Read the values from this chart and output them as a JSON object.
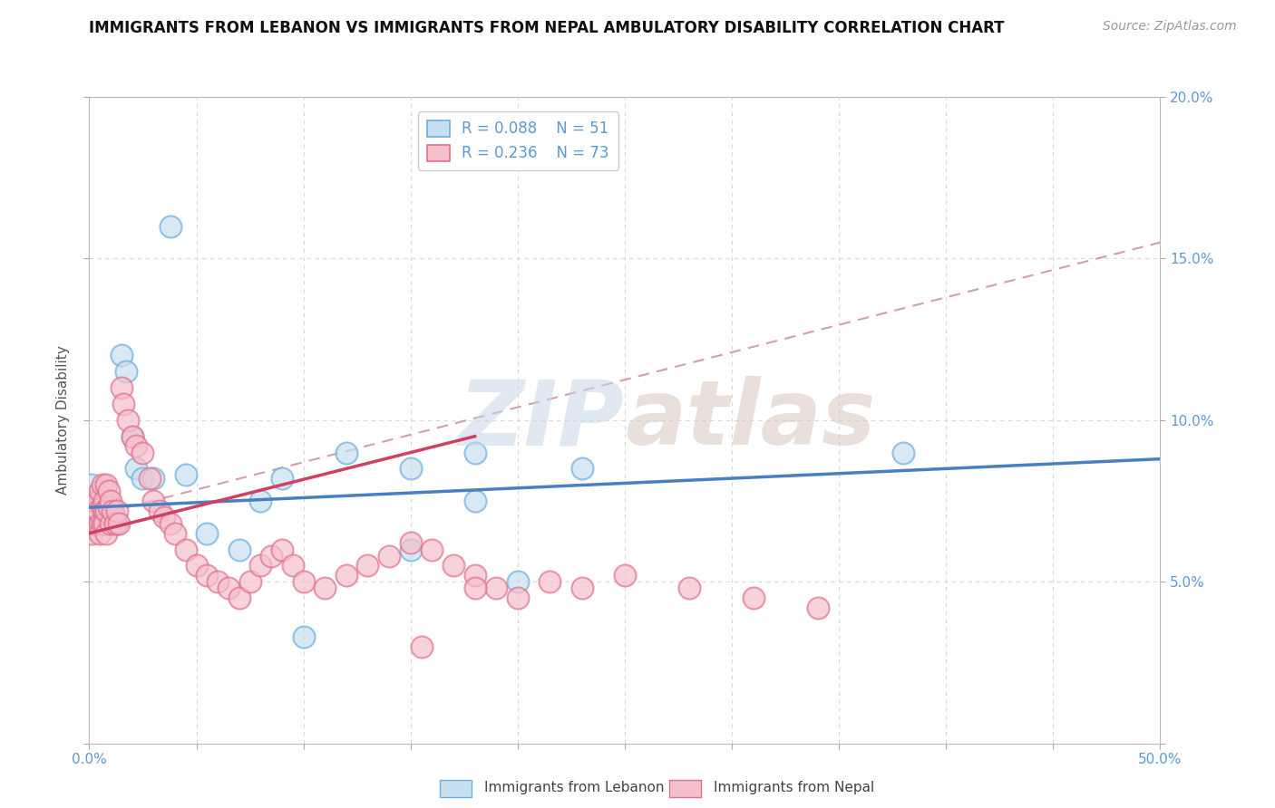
{
  "title": "IMMIGRANTS FROM LEBANON VS IMMIGRANTS FROM NEPAL AMBULATORY DISABILITY CORRELATION CHART",
  "source": "Source: ZipAtlas.com",
  "ylabel": "Ambulatory Disability",
  "xlim": [
    0.0,
    0.5
  ],
  "ylim": [
    0.0,
    0.2
  ],
  "xticks": [
    0.0,
    0.05,
    0.1,
    0.15,
    0.2,
    0.25,
    0.3,
    0.35,
    0.4,
    0.45,
    0.5
  ],
  "yticks": [
    0.0,
    0.05,
    0.1,
    0.15,
    0.2
  ],
  "legend_r1": "R = 0.088",
  "legend_n1": "N = 51",
  "legend_r2": "R = 0.236",
  "legend_n2": "N = 73",
  "color_lebanon_fill": "#c8dff2",
  "color_lebanon_edge": "#6aaee0",
  "color_nepal_fill": "#f5c0cc",
  "color_nepal_edge": "#e07090",
  "color_line_lebanon": "#4a7fc0",
  "color_line_nepal": "#d04060",
  "color_dashed": "#d0a0b0",
  "watermark_color": "#d8e4f0",
  "background_color": "#ffffff",
  "grid_color": "#d8d8d8",
  "lebanon_x": [
    0.001,
    0.001,
    0.002,
    0.002,
    0.002,
    0.003,
    0.003,
    0.003,
    0.004,
    0.004,
    0.004,
    0.005,
    0.005,
    0.005,
    0.005,
    0.006,
    0.006,
    0.006,
    0.007,
    0.007,
    0.007,
    0.008,
    0.008,
    0.009,
    0.009,
    0.01,
    0.01,
    0.011,
    0.012,
    0.013,
    0.015,
    0.017,
    0.02,
    0.022,
    0.025,
    0.03,
    0.038,
    0.045,
    0.055,
    0.07,
    0.08,
    0.09,
    0.1,
    0.12,
    0.15,
    0.18,
    0.2,
    0.23,
    0.15,
    0.18,
    0.38
  ],
  "lebanon_y": [
    0.075,
    0.08,
    0.072,
    0.068,
    0.074,
    0.07,
    0.073,
    0.069,
    0.075,
    0.071,
    0.068,
    0.074,
    0.07,
    0.072,
    0.068,
    0.073,
    0.069,
    0.075,
    0.071,
    0.073,
    0.068,
    0.072,
    0.069,
    0.075,
    0.068,
    0.072,
    0.068,
    0.073,
    0.07,
    0.068,
    0.12,
    0.115,
    0.095,
    0.085,
    0.082,
    0.082,
    0.16,
    0.083,
    0.065,
    0.06,
    0.075,
    0.082,
    0.033,
    0.09,
    0.085,
    0.075,
    0.05,
    0.085,
    0.06,
    0.09,
    0.09
  ],
  "nepal_x": [
    0.001,
    0.001,
    0.002,
    0.002,
    0.002,
    0.003,
    0.003,
    0.003,
    0.004,
    0.004,
    0.004,
    0.005,
    0.005,
    0.005,
    0.006,
    0.006,
    0.006,
    0.007,
    0.007,
    0.007,
    0.008,
    0.008,
    0.008,
    0.009,
    0.009,
    0.01,
    0.01,
    0.011,
    0.012,
    0.013,
    0.014,
    0.015,
    0.016,
    0.018,
    0.02,
    0.022,
    0.025,
    0.028,
    0.03,
    0.033,
    0.035,
    0.038,
    0.04,
    0.045,
    0.05,
    0.055,
    0.06,
    0.065,
    0.07,
    0.075,
    0.08,
    0.085,
    0.09,
    0.095,
    0.1,
    0.11,
    0.12,
    0.13,
    0.14,
    0.15,
    0.16,
    0.17,
    0.18,
    0.19,
    0.2,
    0.215,
    0.23,
    0.25,
    0.28,
    0.31,
    0.34,
    0.155,
    0.18
  ],
  "nepal_y": [
    0.065,
    0.072,
    0.068,
    0.075,
    0.07,
    0.073,
    0.068,
    0.072,
    0.07,
    0.075,
    0.072,
    0.068,
    0.078,
    0.065,
    0.073,
    0.08,
    0.068,
    0.075,
    0.072,
    0.068,
    0.072,
    0.065,
    0.08,
    0.073,
    0.078,
    0.068,
    0.075,
    0.072,
    0.068,
    0.072,
    0.068,
    0.11,
    0.105,
    0.1,
    0.095,
    0.092,
    0.09,
    0.082,
    0.075,
    0.072,
    0.07,
    0.068,
    0.065,
    0.06,
    0.055,
    0.052,
    0.05,
    0.048,
    0.045,
    0.05,
    0.055,
    0.058,
    0.06,
    0.055,
    0.05,
    0.048,
    0.052,
    0.055,
    0.058,
    0.062,
    0.06,
    0.055,
    0.052,
    0.048,
    0.045,
    0.05,
    0.048,
    0.052,
    0.048,
    0.045,
    0.042,
    0.03,
    0.048
  ]
}
